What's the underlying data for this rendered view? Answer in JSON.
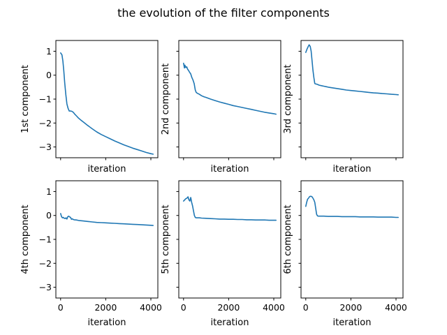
{
  "chart_data": {
    "type": "line",
    "title": "the evolution of the filter components",
    "shared_axes": true,
    "grid": false,
    "x_ticks": [
      0,
      2000,
      4000
    ],
    "x_tick_labels": [
      "0",
      "2000",
      "4000"
    ],
    "y_ticks": [
      1,
      0,
      -1,
      -2,
      -3
    ],
    "y_tick_labels": [
      "1",
      "0",
      "−1",
      "−2",
      "−3"
    ],
    "xlim": [
      -210,
      4310
    ],
    "ylim": [
      -3.45,
      1.45
    ],
    "line_color": "#1f77b4",
    "panels": [
      {
        "xlabel": "iteration",
        "ylabel": "1st component",
        "x": [
          0,
          60,
          100,
          140,
          180,
          230,
          280,
          330,
          380,
          450,
          500,
          560,
          620,
          700,
          800,
          900,
          1000,
          1200,
          1400,
          1600,
          1800,
          2000,
          2200,
          2400,
          2600,
          2800,
          3000,
          3200,
          3400,
          3600,
          3800,
          4000,
          4100
        ],
        "y": [
          0.93,
          0.85,
          0.6,
          0.2,
          -0.3,
          -0.8,
          -1.2,
          -1.38,
          -1.5,
          -1.5,
          -1.51,
          -1.55,
          -1.62,
          -1.7,
          -1.8,
          -1.88,
          -1.95,
          -2.1,
          -2.24,
          -2.37,
          -2.48,
          -2.57,
          -2.66,
          -2.75,
          -2.83,
          -2.91,
          -2.98,
          -3.05,
          -3.11,
          -3.17,
          -3.23,
          -3.28,
          -3.3
        ]
      },
      {
        "xlabel": "iteration",
        "ylabel": "2nd component",
        "x": [
          0,
          40,
          60,
          100,
          140,
          180,
          220,
          270,
          320,
          370,
          420,
          470,
          520,
          560,
          600,
          700,
          800,
          900,
          1000,
          1200,
          1400,
          1600,
          1800,
          2000,
          2200,
          2400,
          2600,
          2800,
          3000,
          3200,
          3400,
          3600,
          3800,
          4000,
          4100
        ],
        "y": [
          0.5,
          0.3,
          0.42,
          0.32,
          0.35,
          0.25,
          0.2,
          0.12,
          0.05,
          -0.1,
          -0.2,
          -0.35,
          -0.62,
          -0.72,
          -0.75,
          -0.8,
          -0.86,
          -0.9,
          -0.93,
          -1.0,
          -1.06,
          -1.12,
          -1.17,
          -1.22,
          -1.27,
          -1.31,
          -1.35,
          -1.39,
          -1.43,
          -1.47,
          -1.51,
          -1.55,
          -1.58,
          -1.61,
          -1.63
        ]
      },
      {
        "xlabel": "iteration",
        "ylabel": "3rd component",
        "x": [
          0,
          60,
          100,
          150,
          200,
          240,
          280,
          320,
          360,
          400,
          450,
          500,
          550,
          600,
          700,
          800,
          900,
          1000,
          1200,
          1400,
          1600,
          1800,
          2000,
          2200,
          2400,
          2600,
          2800,
          3000,
          3200,
          3400,
          3600,
          3800,
          4000,
          4100
        ],
        "y": [
          0.95,
          1.1,
          1.18,
          1.27,
          1.2,
          1.0,
          0.6,
          0.2,
          -0.1,
          -0.35,
          -0.37,
          -0.38,
          -0.4,
          -0.42,
          -0.44,
          -0.46,
          -0.48,
          -0.5,
          -0.53,
          -0.56,
          -0.59,
          -0.62,
          -0.64,
          -0.66,
          -0.68,
          -0.7,
          -0.72,
          -0.74,
          -0.75,
          -0.77,
          -0.78,
          -0.8,
          -0.81,
          -0.82
        ]
      },
      {
        "xlabel": "iteration",
        "ylabel": "4th component",
        "x": [
          0,
          40,
          80,
          120,
          160,
          200,
          240,
          280,
          320,
          360,
          400,
          440,
          480,
          520,
          560,
          600,
          700,
          800,
          1000,
          1200,
          1400,
          1600,
          1800,
          2000,
          2200,
          2400,
          2600,
          2800,
          3000,
          3200,
          3400,
          3600,
          3800,
          4000,
          4100
        ],
        "y": [
          0.08,
          -0.05,
          -0.1,
          -0.08,
          -0.12,
          -0.13,
          -0.1,
          -0.15,
          -0.05,
          -0.03,
          -0.06,
          -0.08,
          -0.16,
          -0.14,
          -0.17,
          -0.18,
          -0.19,
          -0.21,
          -0.23,
          -0.25,
          -0.27,
          -0.29,
          -0.3,
          -0.31,
          -0.32,
          -0.33,
          -0.34,
          -0.35,
          -0.36,
          -0.37,
          -0.38,
          -0.39,
          -0.4,
          -0.41,
          -0.42
        ]
      },
      {
        "xlabel": "iteration",
        "ylabel": "5th component",
        "x": [
          0,
          50,
          100,
          150,
          200,
          240,
          280,
          320,
          360,
          400,
          440,
          480,
          520,
          560,
          600,
          700,
          800,
          1000,
          1200,
          1400,
          1600,
          1800,
          2000,
          2200,
          2400,
          2600,
          2800,
          3000,
          3200,
          3400,
          3600,
          3800,
          4000,
          4100
        ],
        "y": [
          0.6,
          0.65,
          0.7,
          0.72,
          0.78,
          0.65,
          0.6,
          0.75,
          0.55,
          0.4,
          0.2,
          0.0,
          -0.08,
          -0.1,
          -0.1,
          -0.1,
          -0.11,
          -0.12,
          -0.13,
          -0.14,
          -0.15,
          -0.15,
          -0.16,
          -0.16,
          -0.17,
          -0.17,
          -0.18,
          -0.18,
          -0.19,
          -0.19,
          -0.19,
          -0.2,
          -0.2,
          -0.2
        ]
      },
      {
        "xlabel": "iteration",
        "ylabel": "6th component",
        "x": [
          0,
          40,
          80,
          120,
          160,
          200,
          240,
          280,
          320,
          360,
          400,
          440,
          480,
          520,
          560,
          600,
          700,
          800,
          1000,
          1200,
          1400,
          1600,
          1800,
          2000,
          2200,
          2400,
          2600,
          2800,
          3000,
          3200,
          3400,
          3600,
          3800,
          4000,
          4100
        ],
        "y": [
          0.38,
          0.55,
          0.68,
          0.72,
          0.78,
          0.8,
          0.8,
          0.78,
          0.72,
          0.65,
          0.55,
          0.3,
          0.05,
          -0.02,
          -0.03,
          -0.03,
          -0.03,
          -0.03,
          -0.04,
          -0.04,
          -0.04,
          -0.05,
          -0.05,
          -0.05,
          -0.05,
          -0.06,
          -0.06,
          -0.06,
          -0.06,
          -0.07,
          -0.07,
          -0.07,
          -0.07,
          -0.08,
          -0.08
        ]
      }
    ]
  }
}
